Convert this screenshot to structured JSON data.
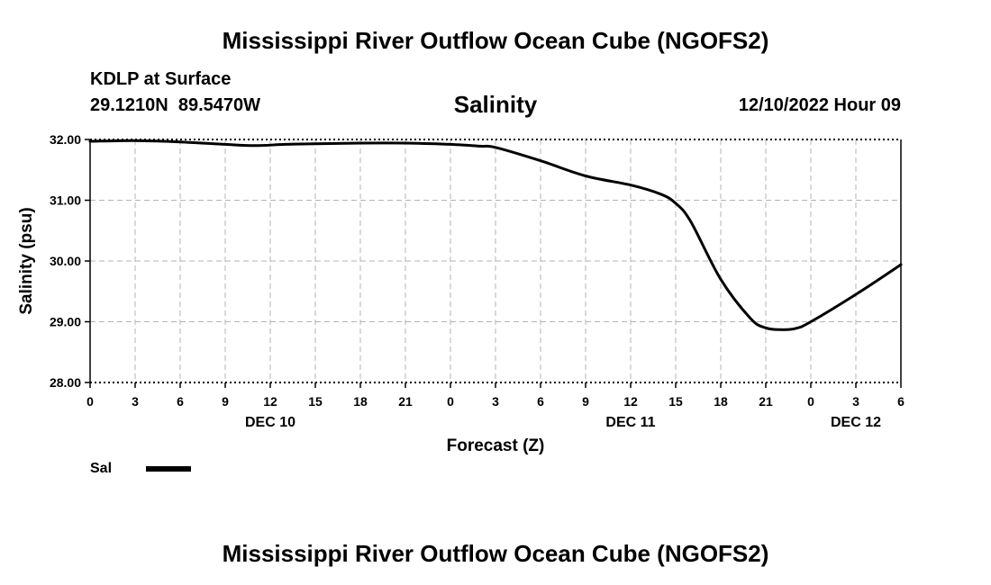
{
  "header": {
    "title": "Mississippi River Outflow Ocean Cube (NGOFS2)",
    "station": "KDLP at Surface",
    "coordinates": "29.1210N  89.5470W",
    "variable": "Salinity",
    "timestamp": "12/10/2022 Hour 09"
  },
  "footer": {
    "title": "Mississippi River Outflow Ocean Cube (NGOFS2)"
  },
  "chart_data": {
    "type": "line",
    "title": "Salinity",
    "xlabel": "Forecast (Z)",
    "ylabel": "Salinity (psu)",
    "xlim": [
      0,
      54
    ],
    "ylim": [
      28,
      32
    ],
    "grid": true,
    "x_ticks": [
      0,
      3,
      6,
      9,
      12,
      15,
      18,
      21,
      24,
      27,
      30,
      33,
      36,
      39,
      42,
      45,
      48,
      51,
      54
    ],
    "x_tick_labels": [
      "0",
      "3",
      "6",
      "9",
      "12",
      "15",
      "18",
      "21",
      "0",
      "3",
      "6",
      "9",
      "12",
      "15",
      "18",
      "21",
      "0",
      "3",
      "6"
    ],
    "y_ticks": [
      28,
      29,
      30,
      31,
      32
    ],
    "y_tick_labels": [
      "28.00",
      "29.00",
      "30.00",
      "31.00",
      "32.00"
    ],
    "date_labels": [
      {
        "x": 12,
        "label": "DEC 10"
      },
      {
        "x": 36,
        "label": "DEC 11"
      },
      {
        "x": 51,
        "label": "DEC 12"
      }
    ],
    "legend": {
      "position": "bottom-left",
      "entries": [
        {
          "name": "Sal",
          "color": "#000000"
        }
      ]
    },
    "series": [
      {
        "name": "Sal",
        "color": "#000000",
        "x": [
          0,
          3,
          6,
          9,
          11,
          13,
          15,
          18,
          21,
          24,
          26,
          27,
          30,
          33,
          36,
          38,
          39,
          40,
          42,
          44,
          45,
          46,
          47,
          48,
          51,
          54
        ],
        "y": [
          31.97,
          31.98,
          31.96,
          31.92,
          31.9,
          31.92,
          31.93,
          31.94,
          31.94,
          31.92,
          31.89,
          31.87,
          31.65,
          31.4,
          31.25,
          31.1,
          30.95,
          30.65,
          29.7,
          29.05,
          28.9,
          28.87,
          28.89,
          29.0,
          29.45,
          29.94
        ]
      }
    ]
  }
}
